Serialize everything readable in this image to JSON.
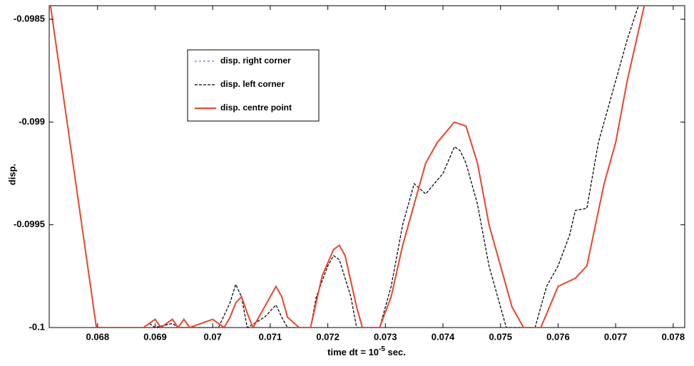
{
  "chart_data": {
    "type": "line",
    "x_label": {
      "text": "time dt = 10",
      "superscript": "-5",
      "suffix": " sec."
    },
    "y_label": "disp.",
    "xlim": [
      0.06716,
      0.0782
    ],
    "ylim": [
      -0.1,
      -0.098434
    ],
    "xticks": [
      0.068,
      0.069,
      0.07,
      0.071,
      0.072,
      0.073,
      0.074,
      0.075,
      0.076,
      0.077,
      0.078
    ],
    "yticks": [
      -0.1,
      -0.0995,
      -0.099,
      -0.0985
    ],
    "legend": "upper left",
    "series": [
      {
        "name": "disp. right corner",
        "color": "#3355dd",
        "dash": "3,3",
        "width": 1,
        "x": [
          0.06718,
          0.06798,
          0.0688,
          0.0689,
          0.069,
          0.0693,
          0.0694,
          0.0701,
          0.0703,
          0.0704,
          0.0705,
          0.0706,
          0.0709,
          0.0711,
          0.0712,
          0.0713,
          0.0717,
          0.0718,
          0.072,
          0.0721,
          0.0722,
          0.0724,
          0.0725,
          0.0729,
          0.0731,
          0.0733,
          0.0735,
          0.0737,
          0.074,
          0.0742,
          0.0743,
          0.0744,
          0.0746,
          0.0748,
          0.075,
          0.0751,
          0.0756,
          0.0758,
          0.076,
          0.0762,
          0.0763,
          0.0765,
          0.0767,
          0.077,
          0.0772,
          0.0774
        ],
        "values": [
          -0.09843,
          -0.1,
          -0.1,
          -0.09998,
          -0.1,
          -0.09998,
          -0.1,
          -0.1,
          -0.09988,
          -0.09979,
          -0.09985,
          -0.1,
          -0.09995,
          -0.09989,
          -0.09995,
          -0.1,
          -0.1,
          -0.09985,
          -0.0997,
          -0.09965,
          -0.09967,
          -0.09985,
          -0.1,
          -0.1,
          -0.0998,
          -0.0995,
          -0.0993,
          -0.09935,
          -0.09925,
          -0.09912,
          -0.09914,
          -0.0992,
          -0.0994,
          -0.0997,
          -0.0999,
          -0.1,
          -0.1,
          -0.0998,
          -0.0997,
          -0.09955,
          -0.09943,
          -0.09942,
          -0.0991,
          -0.0988,
          -0.0986,
          -0.09843
        ]
      },
      {
        "name": "disp. left corner",
        "color": "#000000",
        "dash": "4,2",
        "width": 1.2,
        "x": [
          0.06718,
          0.06798,
          0.0688,
          0.0689,
          0.069,
          0.0693,
          0.0694,
          0.0701,
          0.0703,
          0.0704,
          0.0705,
          0.0706,
          0.0709,
          0.0711,
          0.0712,
          0.0713,
          0.0717,
          0.0718,
          0.072,
          0.0721,
          0.0722,
          0.0724,
          0.0725,
          0.0729,
          0.0731,
          0.0733,
          0.0735,
          0.0737,
          0.074,
          0.0742,
          0.0743,
          0.0744,
          0.0746,
          0.0748,
          0.075,
          0.0751,
          0.0756,
          0.0758,
          0.076,
          0.0762,
          0.0763,
          0.0765,
          0.0767,
          0.077,
          0.0772,
          0.0774
        ],
        "values": [
          -0.09843,
          -0.1,
          -0.1,
          -0.09998,
          -0.1,
          -0.09998,
          -0.1,
          -0.1,
          -0.09988,
          -0.09979,
          -0.09985,
          -0.1,
          -0.09995,
          -0.09989,
          -0.09995,
          -0.1,
          -0.1,
          -0.09985,
          -0.0997,
          -0.09965,
          -0.09967,
          -0.09985,
          -0.1,
          -0.1,
          -0.0998,
          -0.0995,
          -0.0993,
          -0.09935,
          -0.09925,
          -0.09912,
          -0.09914,
          -0.0992,
          -0.0994,
          -0.0997,
          -0.0999,
          -0.1,
          -0.1,
          -0.0998,
          -0.0997,
          -0.09955,
          -0.09943,
          -0.09942,
          -0.0991,
          -0.0988,
          -0.0986,
          -0.09843
        ]
      },
      {
        "name": "disp. centre point",
        "color": "#e8452c",
        "dash": "none",
        "width": 2,
        "x": [
          0.06718,
          0.06798,
          0.0688,
          0.069,
          0.0691,
          0.0693,
          0.0694,
          0.0695,
          0.0696,
          0.07,
          0.0702,
          0.0703,
          0.0704,
          0.0705,
          0.0706,
          0.0707,
          0.0709,
          0.0711,
          0.0712,
          0.0713,
          0.0715,
          0.0717,
          0.0719,
          0.0721,
          0.0722,
          0.0723,
          0.0725,
          0.0726,
          0.0729,
          0.0731,
          0.0733,
          0.0735,
          0.0737,
          0.0739,
          0.0742,
          0.0744,
          0.0746,
          0.0748,
          0.075,
          0.0752,
          0.0754,
          0.0757,
          0.076,
          0.0763,
          0.0765,
          0.0768,
          0.077,
          0.0772,
          0.0775
        ],
        "values": [
          -0.09843,
          -0.1,
          -0.1,
          -0.09996,
          -0.1,
          -0.09996,
          -0.1,
          -0.09996,
          -0.1,
          -0.09996,
          -0.1,
          -0.09995,
          -0.09988,
          -0.09985,
          -0.09993,
          -0.1,
          -0.0999,
          -0.0998,
          -0.09985,
          -0.09995,
          -0.1,
          -0.1,
          -0.09975,
          -0.09962,
          -0.0996,
          -0.09965,
          -0.0999,
          -0.1,
          -0.1,
          -0.09985,
          -0.0996,
          -0.0994,
          -0.0992,
          -0.0991,
          -0.099,
          -0.09902,
          -0.0992,
          -0.0995,
          -0.0997,
          -0.0999,
          -0.1,
          -0.1,
          -0.0998,
          -0.09976,
          -0.0997,
          -0.0993,
          -0.0991,
          -0.0988,
          -0.09843
        ]
      }
    ]
  }
}
